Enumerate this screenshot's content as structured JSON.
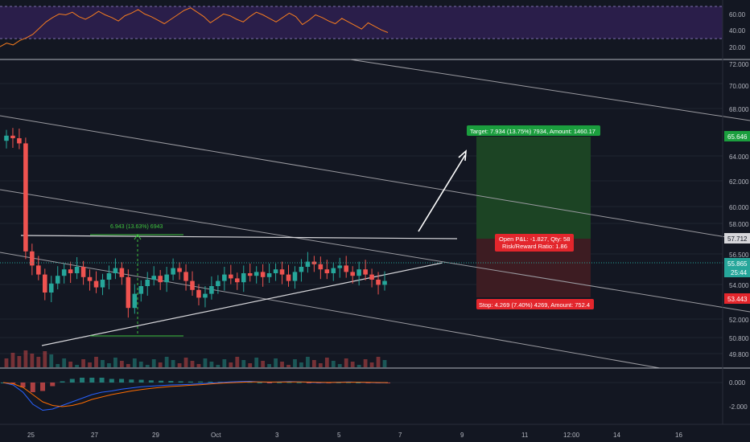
{
  "colors": {
    "background": "#131722",
    "grid": "#1f2430",
    "axis_text": "#b2b5be",
    "up": "#26a69a",
    "down": "#ef5350",
    "rsi_fill": "#2a1e4a",
    "rsi_line": "#f57c1f",
    "trendline": "#c7c7cc",
    "target_zone": "#1c4424",
    "stop_zone": "#3d1c22",
    "target_label": "#1b9e3e",
    "stop_label": "#e3262c",
    "measure": "#3fc23f",
    "price_line": "#26a69a",
    "macd": "#2962ff",
    "signal": "#ff6d00"
  },
  "chart_data": [
    {
      "type": "line",
      "panel": "RSI",
      "y_ticks": [
        "60.00",
        "40.00",
        "20.00"
      ],
      "ylim": [
        15,
        75
      ],
      "bands": [
        30,
        70
      ],
      "last_value": 40,
      "series": [
        {
          "values": [
            24,
            28,
            26,
            31,
            34,
            38,
            45,
            52,
            57,
            61,
            60,
            63,
            58,
            55,
            59,
            64,
            60,
            57,
            53,
            59,
            62,
            66,
            61,
            58,
            54,
            50,
            55,
            60,
            65,
            68,
            63,
            58,
            51,
            56,
            61,
            59,
            55,
            52,
            58,
            63,
            60,
            56,
            52,
            57,
            62,
            58,
            49,
            54,
            60,
            57,
            53,
            50,
            56,
            52,
            48,
            44,
            51,
            47,
            43,
            40
          ]
        }
      ]
    },
    {
      "type": "candlestick",
      "panel": "price",
      "y_ticks": [
        "72.000",
        "70.000",
        "68.000",
        "64.000",
        "62.000",
        "60.000",
        "58.000",
        "56.500",
        "54.000",
        "52.000",
        "50.800",
        "49.800"
      ],
      "x_ticks": [
        "25",
        "27",
        "29",
        "Oct",
        "3",
        "5",
        "7",
        "9",
        "11",
        "12:00",
        "14",
        "16"
      ],
      "price_labels": [
        {
          "value": "65.646",
          "role": "target"
        },
        {
          "value": "57.712",
          "role": "entry"
        },
        {
          "value": "55.865",
          "role": "last"
        },
        {
          "value": "25:44",
          "role": "countdown"
        },
        {
          "value": "53.443",
          "role": "stop"
        }
      ],
      "closes": [
        67.2,
        67.0,
        66.6,
        58.2,
        57.1,
        56.4,
        55.0,
        55.7,
        56.3,
        56.8,
        56.5,
        57.0,
        56.2,
        55.9,
        55.4,
        56.0,
        56.5,
        56.9,
        56.2,
        53.8,
        54.9,
        55.5,
        56.0,
        56.3,
        55.8,
        56.4,
        56.9,
        56.6,
        55.9,
        55.2,
        54.6,
        54.9,
        55.5,
        55.9,
        56.4,
        56.1,
        55.8,
        56.5,
        56.3,
        56.6,
        56.2,
        56.5,
        56.8,
        56.4,
        55.9,
        56.6,
        57.0,
        57.4,
        57.2,
        56.8,
        56.5,
        56.9,
        57.1,
        56.6,
        56.3,
        56.8,
        56.4,
        56.0,
        55.6,
        55.9
      ],
      "annotations": {
        "target_text": "Target: 7.934 (13.75%) 7934, Amount: 1460.17",
        "stop_text": "Stop: 4.269 (7.40%) 4269, Amount: 752.4",
        "pnl_text": "Open P&L: -1.827, Qty: 58",
        "ratio_text": "Risk/Reward Ratio: 1.86",
        "measure_text": "6.943 (13.63%) 6943"
      }
    },
    {
      "type": "line",
      "panel": "MACD",
      "y_ticks": [
        "0.000",
        "-2.000"
      ],
      "ylim": [
        -2.8,
        0.6
      ],
      "series": [
        {
          "values": [
            0.0,
            -0.2,
            -0.8,
            -1.8,
            -2.3,
            -2.2,
            -1.9,
            -1.6,
            -1.3,
            -1.0,
            -0.8,
            -0.7,
            -0.55,
            -0.45,
            -0.35,
            -0.3,
            -0.25,
            -0.2,
            -0.18,
            -0.15,
            -0.1,
            -0.05,
            0.0,
            0.05,
            0.08,
            0.1,
            0.05,
            0.02,
            0.05,
            0.08,
            0.06,
            0.02,
            -0.02,
            0.0,
            0.03,
            0.05,
            0.03,
            0.0,
            -0.03,
            -0.02
          ]
        },
        {
          "values": [
            0.0,
            -0.1,
            -0.4,
            -1.0,
            -1.6,
            -1.9,
            -2.0,
            -1.9,
            -1.7,
            -1.4,
            -1.2,
            -1.0,
            -0.85,
            -0.7,
            -0.58,
            -0.48,
            -0.4,
            -0.33,
            -0.28,
            -0.23,
            -0.18,
            -0.12,
            -0.06,
            -0.02,
            0.02,
            0.05,
            0.05,
            0.04,
            0.04,
            0.05,
            0.05,
            0.04,
            0.02,
            0.01,
            0.02,
            0.03,
            0.03,
            0.02,
            0.0,
            -0.01
          ]
        }
      ]
    }
  ]
}
